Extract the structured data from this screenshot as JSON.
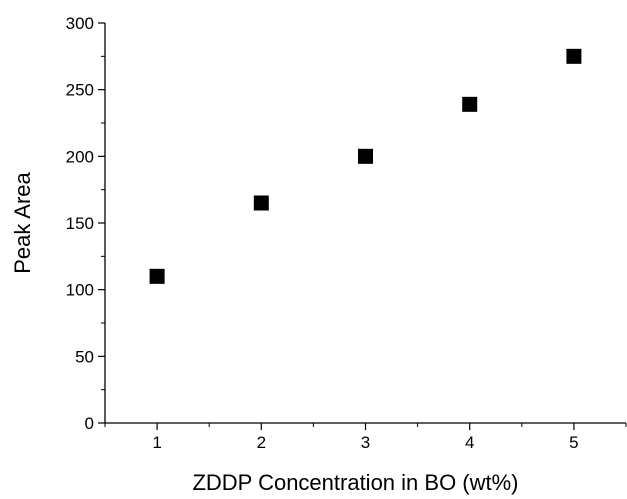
{
  "chart_data": {
    "type": "scatter",
    "title": "",
    "xlabel": "ZDDP Concentration in BO (wt%)",
    "ylabel": "Peak Area",
    "xlim": [
      0.5,
      5.5
    ],
    "ylim": [
      0,
      300
    ],
    "x_ticks": [
      1,
      2,
      3,
      4,
      5
    ],
    "x_tick_labels": [
      "1",
      "2",
      "3",
      "4",
      "5"
    ],
    "y_ticks": [
      0,
      50,
      100,
      150,
      200,
      250,
      300
    ],
    "y_tick_labels": [
      "0",
      "50",
      "100",
      "150",
      "200",
      "250",
      "300"
    ],
    "grid": false,
    "legend": false,
    "marker": "filled-square",
    "series": [
      {
        "x": [
          1,
          2,
          3,
          4,
          5
        ],
        "y": [
          110,
          165,
          200,
          239,
          275
        ],
        "color": "#000000"
      }
    ]
  }
}
